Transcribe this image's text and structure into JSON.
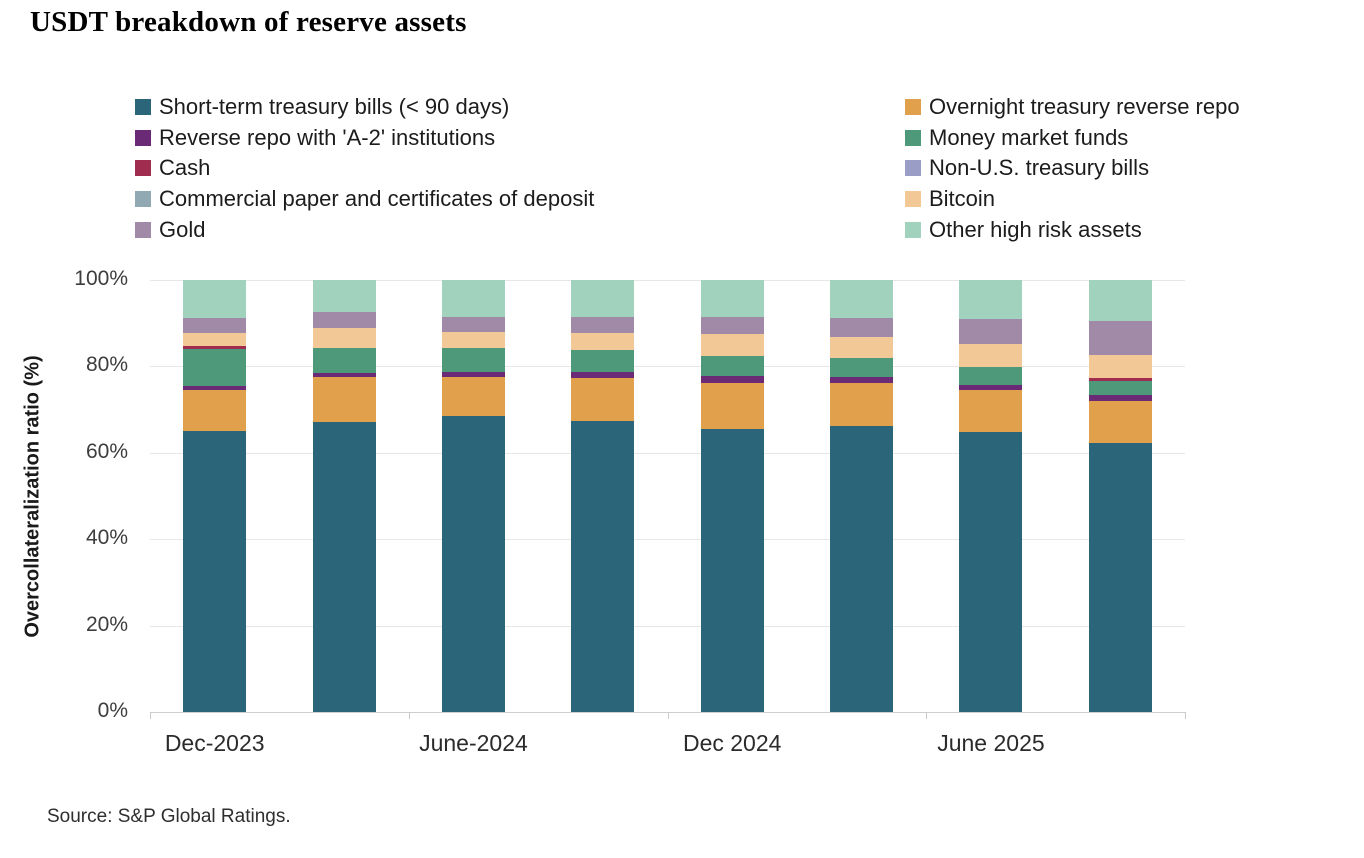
{
  "title": "USDT breakdown of reserve assets",
  "source": "Source: S&P Global Ratings.",
  "colors": {
    "short_term_treasury_bills": "#2b6579",
    "overnight_treasury_reverse_repo": "#e1a04b",
    "reverse_repo_a2": "#6b2a75",
    "money_market_funds": "#4f997b",
    "cash": "#a02c4f",
    "non_us_treasury_bills": "#9a9dc5",
    "commercial_paper_cd": "#90a9b2",
    "bitcoin": "#f3c897",
    "gold": "#a189a8",
    "other_high_risk_assets": "#a1d2bd"
  },
  "legend": {
    "left_column": [
      {
        "label": "Short-term treasury bills (< 90 days)",
        "color": "#2b6579"
      },
      {
        "label": "Reverse repo with 'A-2' institutions",
        "color": "#6b2a75"
      },
      {
        "label": "Cash",
        "color": "#a02c4f"
      },
      {
        "label": "Commercial paper and certificates of deposit",
        "color": "#90a9b2"
      },
      {
        "label": "Gold",
        "color": "#a189a8"
      }
    ],
    "right_column": [
      {
        "label": "Overnight treasury reverse repo",
        "color": "#e1a04b"
      },
      {
        "label": "Money market funds",
        "color": "#4f997b"
      },
      {
        "label": "Non-U.S. treasury bills",
        "color": "#9a9dc5"
      },
      {
        "label": "Bitcoin",
        "color": "#f3c897"
      },
      {
        "label": "Other high risk assets",
        "color": "#a1d2bd"
      }
    ]
  },
  "y_axis": {
    "title": "Overcollateralization ratio (%)",
    "ticks": [
      "100%",
      "80%",
      "60%",
      "40%",
      "20%",
      "0%"
    ]
  },
  "x_axis": {
    "tick_labels": [
      "Dec-2023",
      "June-2024",
      "Dec 2024",
      "June 2025"
    ]
  },
  "chart_data": {
    "type": "bar",
    "stacked": true,
    "title": "USDT breakdown of reserve assets",
    "xlabel": "",
    "ylabel": "Overcollateralization ratio (%)",
    "ylim": [
      0,
      100
    ],
    "grid": true,
    "legend_position": "top",
    "categories": [
      "Dec-2023",
      "",
      "June-2024",
      "",
      "Dec 2024",
      "",
      "June 2025",
      ""
    ],
    "x_tick_labels_shown": [
      "Dec-2023",
      "June-2024",
      "Dec 2024",
      "June 2025"
    ],
    "series": [
      {
        "name": "Short-term treasury bills (< 90 days)",
        "color": "#2b6579",
        "values": [
          65.0,
          67.2,
          68.5,
          67.3,
          65.5,
          66.2,
          64.9,
          62.3
        ]
      },
      {
        "name": "Overnight treasury reverse repo",
        "color": "#e1a04b",
        "values": [
          9.5,
          10.3,
          9.1,
          9.9,
          10.6,
          9.9,
          9.6,
          9.7
        ]
      },
      {
        "name": "Reverse repo with 'A-2' institutions",
        "color": "#6b2a75",
        "values": [
          1.0,
          0.9,
          1.0,
          1.6,
          1.7,
          1.5,
          1.2,
          1.4
        ]
      },
      {
        "name": "Money market funds",
        "color": "#4f997b",
        "values": [
          8.5,
          5.8,
          5.6,
          5.0,
          4.6,
          4.3,
          4.2,
          3.3
        ]
      },
      {
        "name": "Cash",
        "color": "#a02c4f",
        "values": [
          0.7,
          0,
          0,
          0,
          0,
          0,
          0,
          0.5
        ]
      },
      {
        "name": "Non-U.S. treasury bills",
        "color": "#9a9dc5",
        "values": [
          0,
          0,
          0,
          0,
          0,
          0,
          0,
          0
        ]
      },
      {
        "name": "Commercial paper and certificates of deposit",
        "color": "#90a9b2",
        "values": [
          0,
          0,
          0,
          0,
          0,
          0,
          0,
          0
        ]
      },
      {
        "name": "Bitcoin",
        "color": "#f3c897",
        "values": [
          3.0,
          4.8,
          3.8,
          3.9,
          5.0,
          5.0,
          5.3,
          5.4
        ]
      },
      {
        "name": "Gold",
        "color": "#a189a8",
        "values": [
          3.6,
          3.7,
          3.5,
          3.8,
          4.1,
          4.4,
          5.7,
          8.0
        ]
      },
      {
        "name": "Other high risk assets",
        "color": "#a1d2bd",
        "values": [
          8.7,
          7.3,
          8.5,
          8.5,
          8.5,
          8.7,
          9.1,
          9.4
        ]
      }
    ]
  }
}
